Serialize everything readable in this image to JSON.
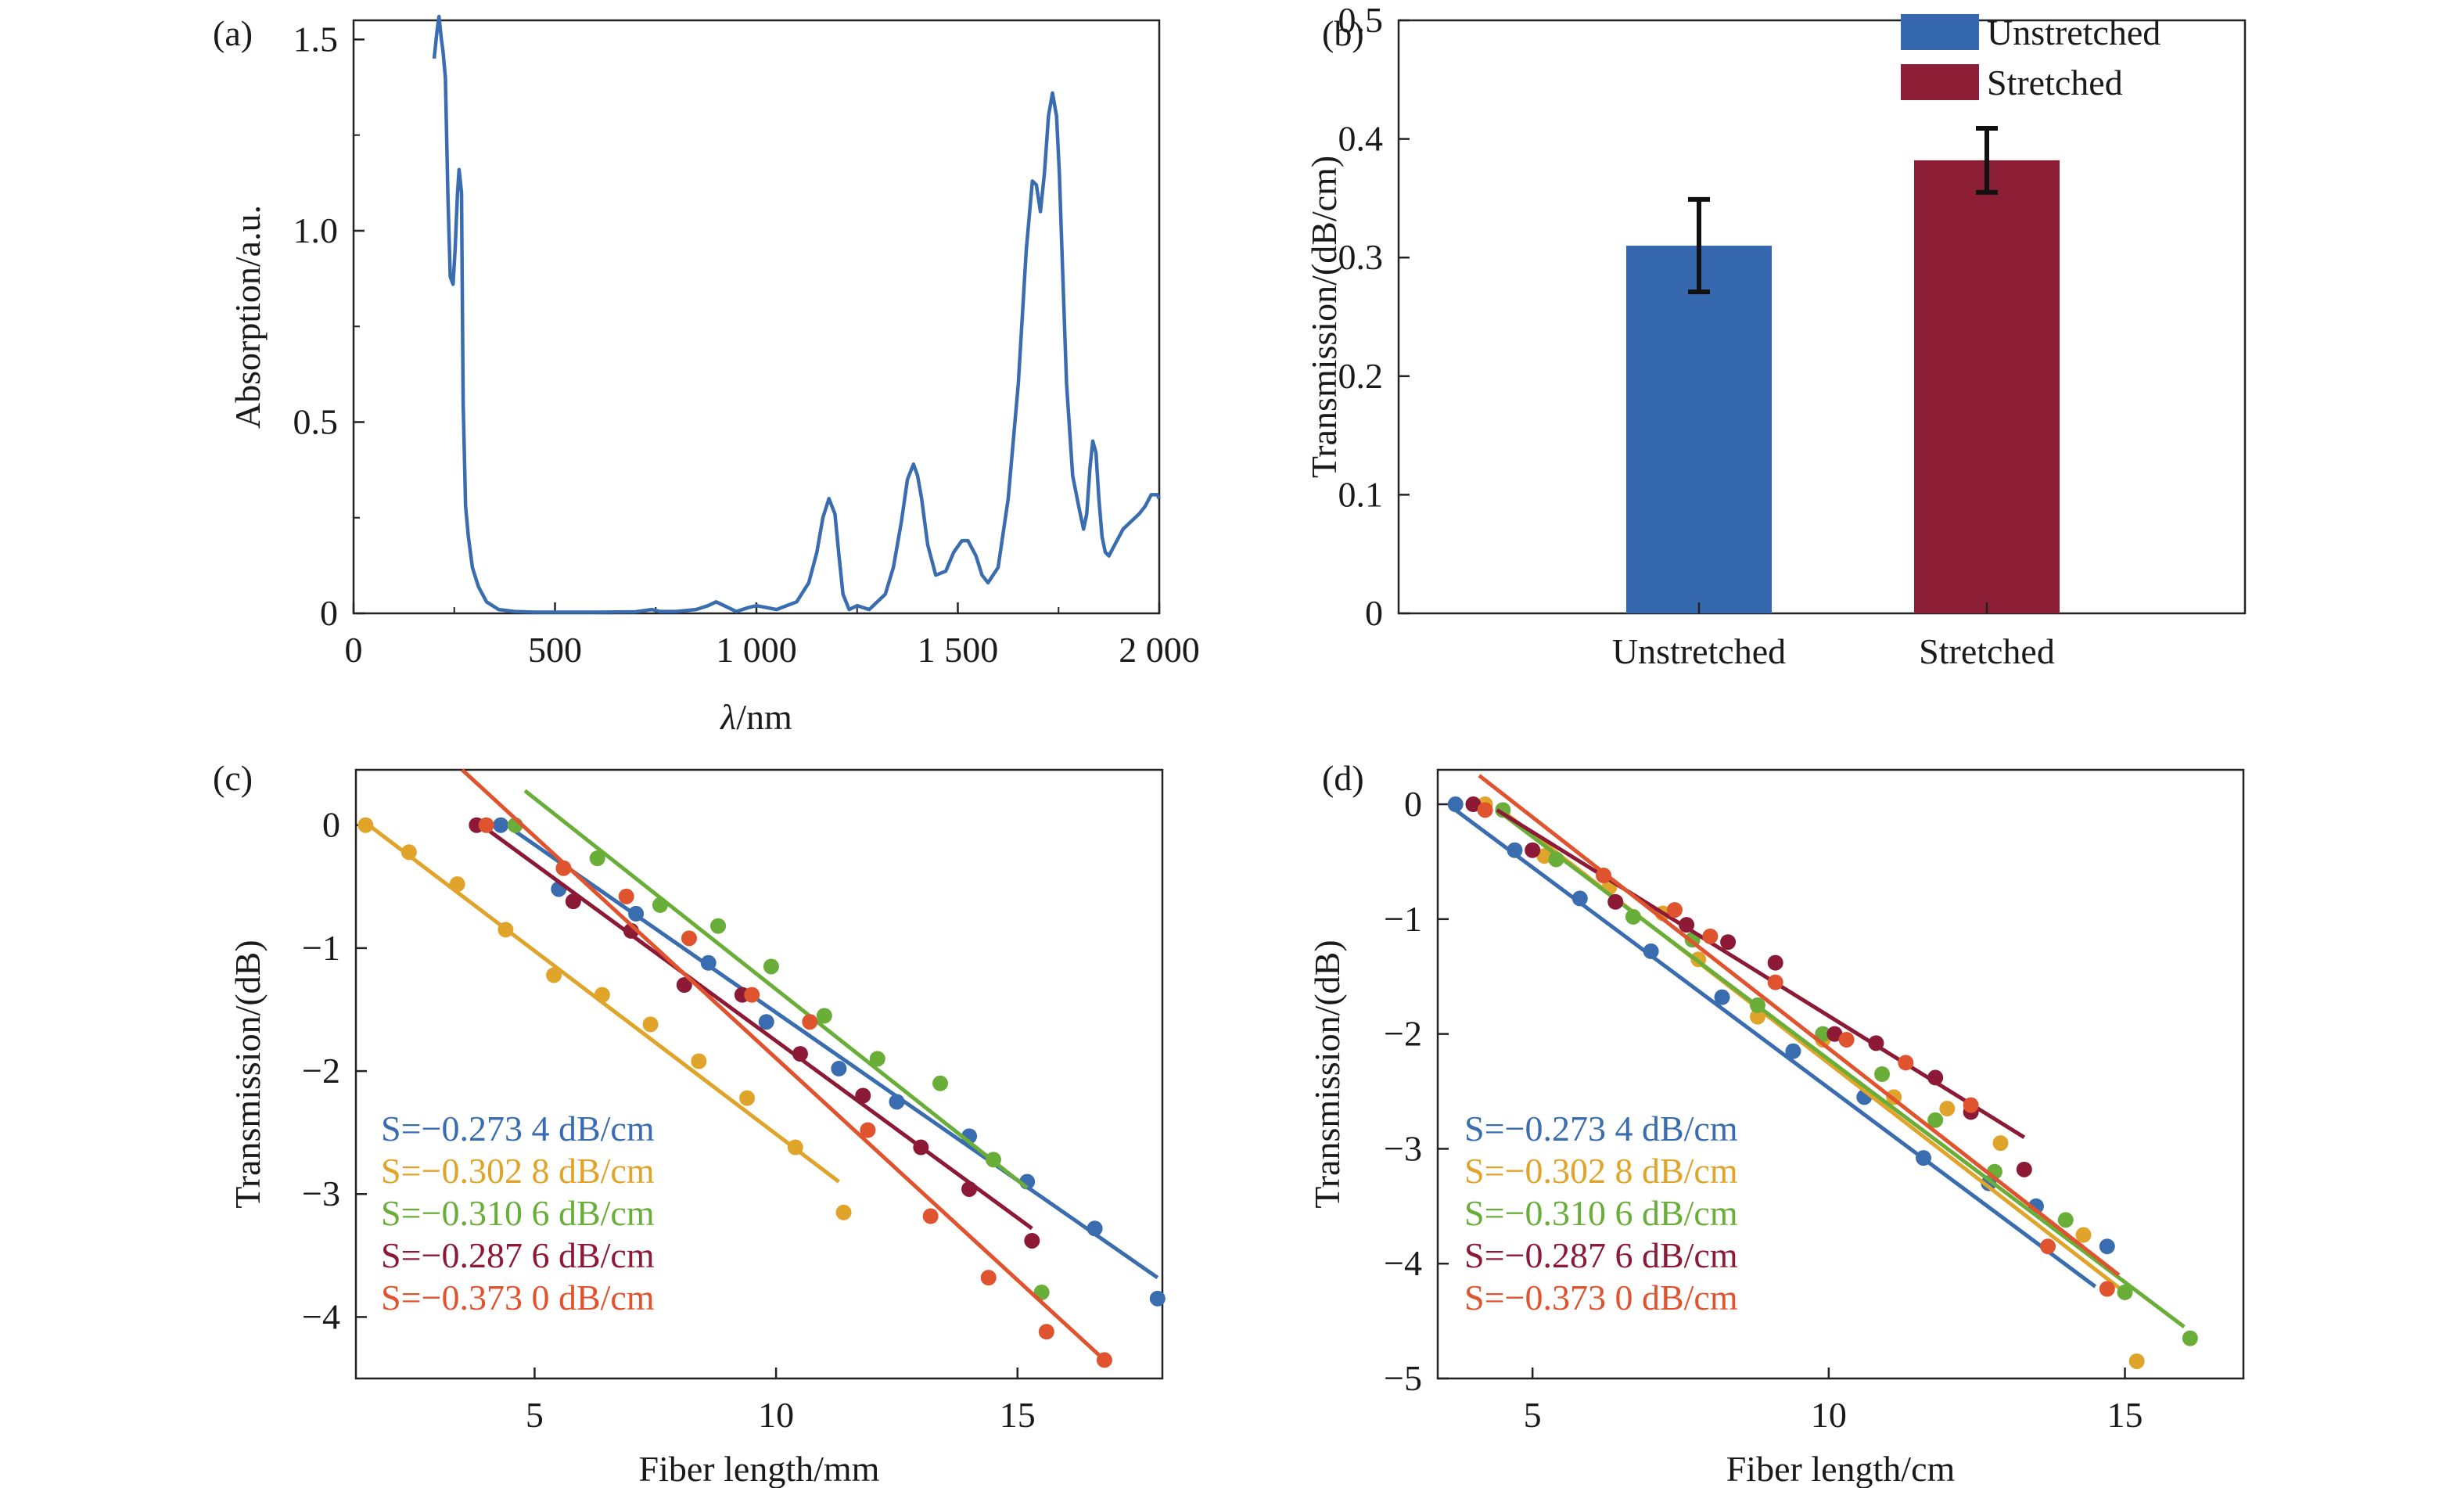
{
  "chart_data": [
    {
      "panel": "(a)",
      "type": "line",
      "xlabel_italic": "λ",
      "xlabel_unit": "/nm",
      "ylabel": "Absorption/a.u.",
      "xlim": [
        0,
        2000
      ],
      "ylim": [
        0,
        1.55
      ],
      "xticks": [
        0,
        500,
        1000,
        1500,
        2000
      ],
      "xtick_labels": [
        "0",
        "500",
        "1 000",
        "1 500",
        "2 000"
      ],
      "yticks": [
        0,
        0.5,
        1.0,
        1.5
      ],
      "ytick_labels": [
        "0",
        "0.5",
        "1.0",
        "1.5"
      ],
      "series": [
        {
          "color": "#3a6db0",
          "x": [
            200,
            207,
            212,
            218,
            222,
            228,
            234,
            240,
            247,
            252,
            258,
            262,
            268,
            272,
            278,
            285,
            295,
            310,
            330,
            360,
            400,
            450,
            500,
            600,
            700,
            740,
            760,
            800,
            850,
            880,
            900,
            920,
            950,
            980,
            1000,
            1050,
            1100,
            1130,
            1150,
            1165,
            1180,
            1195,
            1205,
            1215,
            1230,
            1250,
            1280,
            1300,
            1320,
            1340,
            1360,
            1375,
            1390,
            1400,
            1410,
            1425,
            1445,
            1470,
            1490,
            1510,
            1525,
            1545,
            1560,
            1575,
            1600,
            1625,
            1650,
            1670,
            1685,
            1695,
            1705,
            1715,
            1725,
            1735,
            1745,
            1752,
            1760,
            1770,
            1785,
            1800,
            1812,
            1820,
            1828,
            1835,
            1843,
            1850,
            1858,
            1866,
            1875,
            1890,
            1910,
            1930,
            1950,
            1965,
            1980,
            1995,
            2000
          ],
          "y": [
            1.45,
            1.52,
            1.56,
            1.5,
            1.47,
            1.4,
            1.1,
            0.88,
            0.86,
            0.95,
            1.1,
            1.16,
            1.1,
            0.55,
            0.28,
            0.2,
            0.12,
            0.07,
            0.03,
            0.01,
            0.005,
            0.003,
            0.003,
            0.003,
            0.004,
            0.01,
            0.005,
            0.005,
            0.01,
            0.02,
            0.03,
            0.02,
            0.005,
            0.015,
            0.02,
            0.01,
            0.03,
            0.08,
            0.16,
            0.25,
            0.3,
            0.26,
            0.15,
            0.05,
            0.01,
            0.02,
            0.01,
            0.03,
            0.05,
            0.12,
            0.24,
            0.35,
            0.39,
            0.36,
            0.3,
            0.18,
            0.1,
            0.11,
            0.16,
            0.19,
            0.19,
            0.15,
            0.1,
            0.08,
            0.12,
            0.3,
            0.6,
            0.95,
            1.13,
            1.12,
            1.05,
            1.15,
            1.3,
            1.36,
            1.3,
            1.15,
            0.9,
            0.6,
            0.36,
            0.28,
            0.22,
            0.26,
            0.38,
            0.45,
            0.42,
            0.3,
            0.2,
            0.16,
            0.15,
            0.18,
            0.22,
            0.24,
            0.26,
            0.28,
            0.31,
            0.31,
            0.3
          ]
        }
      ]
    },
    {
      "panel": "(b)",
      "type": "bar",
      "ylabel": "Transmission/(dB/cm)",
      "ylim": [
        0,
        0.5
      ],
      "yticks": [
        0,
        0.1,
        0.2,
        0.3,
        0.4,
        0.5
      ],
      "ytick_labels": [
        "0",
        "0.1",
        "0.2",
        "0.3",
        "0.4",
        "0.5"
      ],
      "categories": [
        "Unstretched",
        "Stretched"
      ],
      "values": [
        0.31,
        0.382
      ],
      "errors": [
        0.039,
        0.027
      ],
      "colors": [
        "#3668b0",
        "#8c1f35"
      ],
      "legend": {
        "placement": "top-right",
        "entries": [
          "Unstretched",
          "Stretched"
        ]
      }
    },
    {
      "panel": "(c)",
      "type": "scatter",
      "xlabel": "Fiber length/mm",
      "ylabel": "Transmission/(dB)",
      "xlim": [
        1.3,
        18
      ],
      "ylim": [
        -4.5,
        0.45
      ],
      "xticks": [
        5,
        10,
        15
      ],
      "xtick_labels": [
        "5",
        "10",
        "15"
      ],
      "yticks": [
        0,
        -1,
        -2,
        -3,
        -4
      ],
      "ytick_labels": [
        "0",
        "−1",
        "−2",
        "−3",
        "−4"
      ],
      "series": [
        {
          "name": "S=−0.273 4 dB/cm",
          "color": "#3a6db0",
          "x": [
            4.3,
            5.5,
            7.1,
            8.6,
            9.8,
            11.3,
            12.5,
            14.0,
            15.2,
            16.6,
            17.9
          ],
          "y": [
            0,
            -0.52,
            -0.72,
            -1.12,
            -1.6,
            -1.98,
            -2.25,
            -2.53,
            -2.9,
            -3.28,
            -3.85
          ],
          "fit_x": [
            4.6,
            17.9
          ],
          "fit_y": [
            -0.05,
            -3.68
          ]
        },
        {
          "name": "S=−0.302 8 dB/cm",
          "color": "#e0a42b",
          "x": [
            1.5,
            2.4,
            3.4,
            4.4,
            5.4,
            6.4,
            7.4,
            8.4,
            9.4,
            10.4,
            11.4
          ],
          "y": [
            0,
            -0.22,
            -0.48,
            -0.85,
            -1.22,
            -1.38,
            -1.62,
            -1.92,
            -2.22,
            -2.62,
            -3.15
          ],
          "fit_x": [
            1.5,
            11.3
          ],
          "fit_y": [
            0.02,
            -2.9
          ]
        },
        {
          "name": "S=−0.310 6 dB/cm",
          "color": "#6aae3a",
          "x": [
            4.6,
            6.3,
            7.6,
            8.8,
            9.9,
            11.0,
            12.1,
            13.4,
            14.5,
            15.5
          ],
          "y": [
            0,
            -0.27,
            -0.65,
            -0.82,
            -1.15,
            -1.55,
            -1.9,
            -2.1,
            -2.72,
            -3.8
          ],
          "fit_x": [
            4.8,
            15.2
          ],
          "fit_y": [
            0.28,
            -2.95
          ]
        },
        {
          "name": "S=−0.287 6 dB/cm",
          "color": "#8c1a36",
          "x": [
            3.8,
            5.8,
            7.0,
            8.1,
            9.3,
            10.5,
            11.8,
            13.0,
            14.0,
            15.3
          ],
          "y": [
            0,
            -0.62,
            -0.86,
            -1.3,
            -1.38,
            -1.86,
            -2.2,
            -2.62,
            -2.96,
            -3.38
          ],
          "fit_x": [
            3.9,
            15.3
          ],
          "fit_y": [
            0.0,
            -3.28
          ]
        },
        {
          "name": "S=−0.373 0 dB/cm",
          "color": "#e0532f",
          "x": [
            4.0,
            5.6,
            6.9,
            8.2,
            9.5,
            10.7,
            11.9,
            13.2,
            14.4,
            15.6,
            16.8
          ],
          "y": [
            0,
            -0.35,
            -0.58,
            -0.92,
            -1.38,
            -1.6,
            -2.48,
            -3.18,
            -3.68,
            -4.12,
            -4.35
          ],
          "fit_x": [
            3.5,
            16.8
          ],
          "fit_y": [
            0.45,
            -4.35
          ]
        }
      ]
    },
    {
      "panel": "(d)",
      "type": "scatter",
      "xlabel": "Fiber length/cm",
      "ylabel": "Transmission/(dB)",
      "xlim": [
        3.4,
        17.0
      ],
      "ylim": [
        -5.0,
        0.3
      ],
      "xticks": [
        5,
        10,
        15
      ],
      "xtick_labels": [
        "5",
        "10",
        "15"
      ],
      "yticks": [
        0,
        -1,
        -2,
        -3,
        -4,
        -5
      ],
      "ytick_labels": [
        "0",
        "−1",
        "−2",
        "−3",
        "−4",
        "−5"
      ],
      "series": [
        {
          "name": "S=−0.273 4 dB/cm",
          "color": "#3a6db0",
          "x": [
            3.7,
            4.7,
            5.8,
            7.0,
            8.2,
            9.4,
            10.6,
            11.6,
            12.7,
            13.5,
            14.7
          ],
          "y": [
            0,
            -0.4,
            -0.82,
            -1.28,
            -1.68,
            -2.15,
            -2.55,
            -3.08,
            -3.3,
            -3.5,
            -3.85
          ],
          "fit_x": [
            3.7,
            14.5
          ],
          "fit_y": [
            -0.05,
            -4.2
          ]
        },
        {
          "name": "S=−0.302 8 dB/cm",
          "color": "#e0a42b",
          "x": [
            4.2,
            5.2,
            6.3,
            7.2,
            7.8,
            8.8,
            9.9,
            11.1,
            12.0,
            12.9,
            14.3,
            15.2
          ],
          "y": [
            0,
            -0.45,
            -0.72,
            -0.95,
            -1.35,
            -1.85,
            -2.05,
            -2.55,
            -2.65,
            -2.95,
            -3.75,
            -4.85
          ],
          "fit_x": [
            4.4,
            15.0
          ],
          "fit_y": [
            -0.02,
            -4.25
          ]
        },
        {
          "name": "S=−0.310 6 dB/cm",
          "color": "#6aae3a",
          "x": [
            4.5,
            5.4,
            6.7,
            7.7,
            8.8,
            9.9,
            10.9,
            11.8,
            12.8,
            14.0,
            15.0,
            16.1
          ],
          "y": [
            -0.05,
            -0.48,
            -0.98,
            -1.18,
            -1.75,
            -2.0,
            -2.35,
            -2.75,
            -3.2,
            -3.62,
            -4.25,
            -4.65
          ],
          "fit_x": [
            4.4,
            16.0
          ],
          "fit_y": [
            -0.05,
            -4.55
          ]
        },
        {
          "name": "S=−0.287 6 dB/cm",
          "color": "#8c1a36",
          "x": [
            4.0,
            5.0,
            6.4,
            7.6,
            8.3,
            9.1,
            10.1,
            10.8,
            11.8,
            12.4,
            13.3
          ],
          "y": [
            0,
            -0.4,
            -0.85,
            -1.05,
            -1.2,
            -1.38,
            -2.0,
            -2.08,
            -2.38,
            -2.68,
            -3.18
          ],
          "fit_x": [
            4.4,
            13.3
          ],
          "fit_y": [
            -0.05,
            -2.9
          ]
        },
        {
          "name": "S=−0.373 0 dB/cm",
          "color": "#e0532f",
          "x": [
            4.2,
            6.2,
            7.4,
            8.0,
            9.1,
            10.3,
            11.3,
            12.4,
            13.7,
            14.7
          ],
          "y": [
            -0.05,
            -0.62,
            -0.92,
            -1.15,
            -1.55,
            -2.05,
            -2.25,
            -2.62,
            -3.85,
            -4.22
          ],
          "fit_x": [
            4.1,
            14.9
          ],
          "fit_y": [
            0.25,
            -4.1
          ]
        }
      ]
    }
  ]
}
